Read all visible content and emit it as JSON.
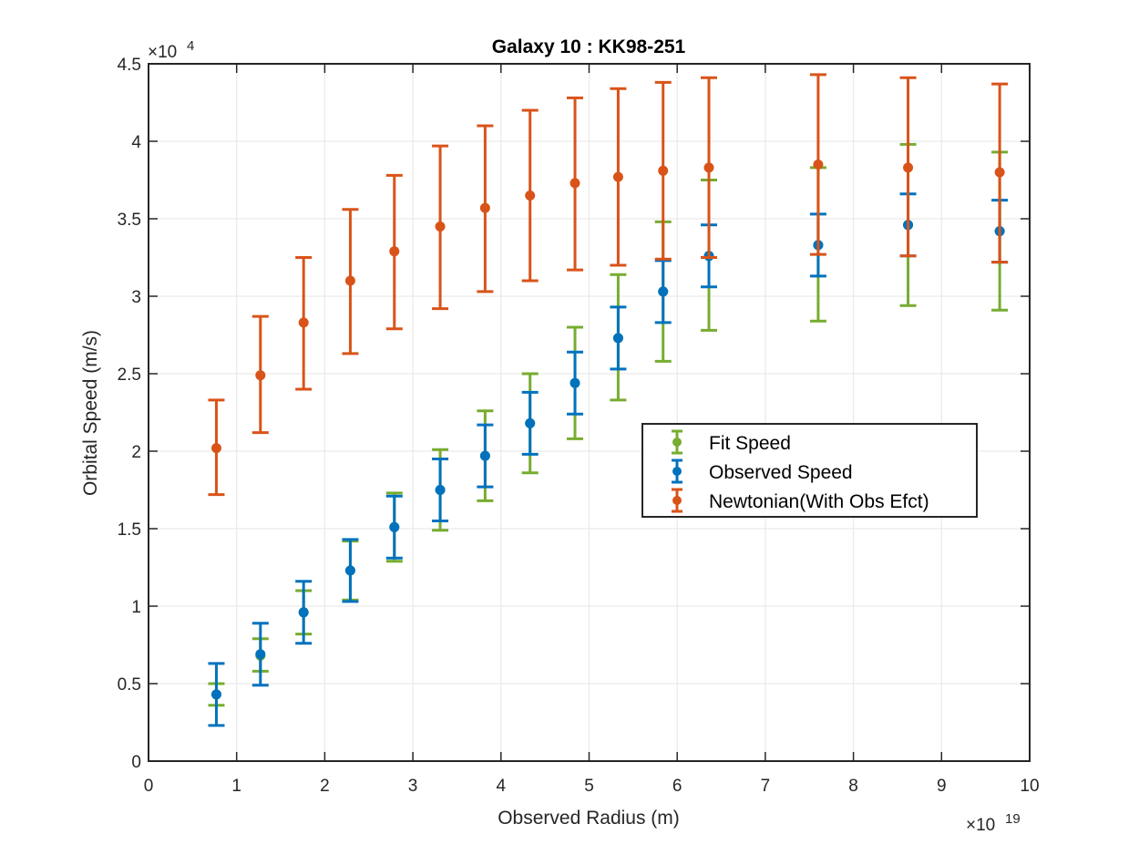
{
  "chart_data": {
    "type": "scatter",
    "title": "Galaxy 10 : KK98-251",
    "xlabel": "Observed Radius (m)",
    "ylabel": "Orbital Speed (m/s)",
    "x_multiplier": {
      "base": "×10",
      "exponent": "19"
    },
    "y_multiplier": {
      "base": "×10",
      "exponent": "4"
    },
    "xlim": [
      0,
      10
    ],
    "ylim": [
      0,
      4.5
    ],
    "xticks": [
      0,
      1,
      2,
      3,
      4,
      5,
      6,
      7,
      8,
      9,
      10
    ],
    "yticks": [
      0,
      0.5,
      1,
      1.5,
      2,
      2.5,
      3,
      3.5,
      4,
      4.5
    ],
    "xtick_labels": [
      "0",
      "1",
      "2",
      "3",
      "4",
      "5",
      "6",
      "7",
      "8",
      "9",
      "10"
    ],
    "ytick_labels": [
      "0",
      "0.5",
      "1",
      "1.5",
      "2",
      "2.5",
      "3",
      "3.5",
      "4",
      "4.5"
    ],
    "grid": true,
    "legend_position": "center-right",
    "series": [
      {
        "name": "Fit Speed",
        "color": "#77AC30",
        "x": [
          0.77,
          1.27,
          1.76,
          2.29,
          2.79,
          3.31,
          3.82,
          4.33,
          4.84,
          5.33,
          5.84,
          6.36,
          7.6,
          8.62,
          9.66
        ],
        "y": [
          0.43,
          0.68,
          0.96,
          1.23,
          1.51,
          1.75,
          1.97,
          2.18,
          2.44,
          2.73,
          3.03,
          3.26,
          3.33,
          3.46,
          3.42
        ],
        "lower": [
          0.36,
          0.58,
          0.82,
          1.04,
          1.29,
          1.49,
          1.68,
          1.86,
          2.08,
          2.33,
          2.58,
          2.78,
          2.84,
          2.94,
          2.91
        ],
        "upper": [
          0.5,
          0.79,
          1.1,
          1.42,
          1.73,
          2.01,
          2.26,
          2.5,
          2.8,
          3.14,
          3.48,
          3.75,
          3.83,
          3.98,
          3.93
        ]
      },
      {
        "name": "Observed Speed",
        "color": "#0072BD",
        "x": [
          0.77,
          1.27,
          1.76,
          2.29,
          2.79,
          3.31,
          3.82,
          4.33,
          4.84,
          5.33,
          5.84,
          6.36,
          7.6,
          8.62,
          9.66
        ],
        "y": [
          0.43,
          0.69,
          0.96,
          1.23,
          1.51,
          1.75,
          1.97,
          2.18,
          2.44,
          2.73,
          3.03,
          3.26,
          3.33,
          3.46,
          3.42
        ],
        "lower": [
          0.23,
          0.49,
          0.76,
          1.03,
          1.31,
          1.55,
          1.77,
          1.98,
          2.24,
          2.53,
          2.83,
          3.06,
          3.13,
          3.26,
          3.22
        ],
        "upper": [
          0.63,
          0.89,
          1.16,
          1.43,
          1.71,
          1.95,
          2.17,
          2.38,
          2.64,
          2.93,
          3.23,
          3.46,
          3.53,
          3.66,
          3.62
        ]
      },
      {
        "name": "Newtonian(With Obs Efct)",
        "color": "#D95319",
        "x": [
          0.77,
          1.27,
          1.76,
          2.29,
          2.79,
          3.31,
          3.82,
          4.33,
          4.84,
          5.33,
          5.84,
          6.36,
          7.6,
          8.62,
          9.66
        ],
        "y": [
          2.02,
          2.49,
          2.83,
          3.1,
          3.29,
          3.45,
          3.57,
          3.65,
          3.73,
          3.77,
          3.81,
          3.83,
          3.85,
          3.83,
          3.8
        ],
        "lower": [
          1.72,
          2.12,
          2.4,
          2.63,
          2.79,
          2.92,
          3.03,
          3.1,
          3.17,
          3.2,
          3.24,
          3.25,
          3.27,
          3.26,
          3.22
        ],
        "upper": [
          2.33,
          2.87,
          3.25,
          3.56,
          3.78,
          3.97,
          4.1,
          4.2,
          4.28,
          4.34,
          4.38,
          4.41,
          4.43,
          4.41,
          4.37
        ]
      }
    ]
  }
}
